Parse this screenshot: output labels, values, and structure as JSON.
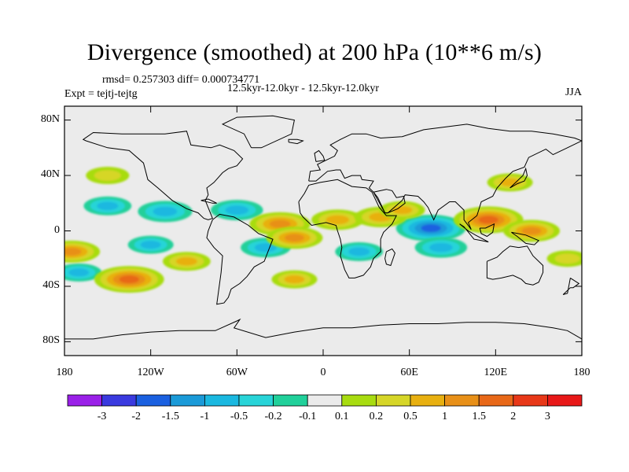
{
  "chart_data": {
    "type": "heatmap",
    "title": "Divergence (smoothed) at 200 hPa (10**6 m/s)",
    "stats": "rmsd= 0.257303 diff= 0.000734771",
    "period": "12.5kyr-12.0kyr - 12.5kyr-12.0kyr",
    "experiment": "Expt = tejtj-tejtg",
    "season": "JJA",
    "xlim": [
      -180,
      180
    ],
    "ylim": [
      -90,
      90
    ],
    "x_ticks": [
      {
        "value": -180,
        "label": "180"
      },
      {
        "value": -120,
        "label": "120W"
      },
      {
        "value": -60,
        "label": "60W"
      },
      {
        "value": 0,
        "label": "0"
      },
      {
        "value": 60,
        "label": "60E"
      },
      {
        "value": 120,
        "label": "120E"
      },
      {
        "value": 180,
        "label": "180"
      }
    ],
    "y_ticks": [
      {
        "value": 80,
        "label": "80N"
      },
      {
        "value": 40,
        "label": "40N"
      },
      {
        "value": 0,
        "label": "0"
      },
      {
        "value": -40,
        "label": "40S"
      },
      {
        "value": -80,
        "label": "80S"
      }
    ],
    "colorbar": {
      "labels": [
        "-3",
        "-2",
        "-1.5",
        "-1",
        "-0.5",
        "-0.2",
        "-0.1",
        "0.1",
        "0.2",
        "0.5",
        "1",
        "1.5",
        "2",
        "3"
      ],
      "colors": [
        "#9a20e8",
        "#3a3adf",
        "#1a60e0",
        "#1a9ad8",
        "#1ab8e0",
        "#28d4d8",
        "#20d09a",
        "#ebebeb",
        "#a8dc10",
        "#d6d628",
        "#e8b010",
        "#e89018",
        "#e86818",
        "#e83818",
        "#e81818"
      ]
    },
    "field": [
      {
        "lon": -150,
        "lat": 18,
        "value": -0.6
      },
      {
        "lon": -110,
        "lat": 14,
        "value": -0.9
      },
      {
        "lon": -60,
        "lat": 15,
        "value": -0.8
      },
      {
        "lon": -40,
        "lat": -12,
        "value": -0.7
      },
      {
        "lon": 25,
        "lat": -15,
        "value": -0.6
      },
      {
        "lon": 75,
        "lat": 2,
        "value": -1.6
      },
      {
        "lon": 82,
        "lat": -12,
        "value": -0.8
      },
      {
        "lon": -170,
        "lat": -30,
        "value": -0.5
      },
      {
        "lon": -120,
        "lat": -10,
        "value": -0.5
      },
      {
        "lon": -30,
        "lat": 5,
        "value": 1.2
      },
      {
        "lon": -20,
        "lat": -5,
        "value": 1.0
      },
      {
        "lon": 10,
        "lat": 8,
        "value": 0.8
      },
      {
        "lon": 40,
        "lat": 10,
        "value": 0.8
      },
      {
        "lon": 115,
        "lat": 8,
        "value": 1.6
      },
      {
        "lon": 145,
        "lat": 0,
        "value": 1.0
      },
      {
        "lon": -135,
        "lat": -35,
        "value": 1.6
      },
      {
        "lon": -175,
        "lat": -15,
        "value": 1.0
      },
      {
        "lon": -95,
        "lat": -22,
        "value": 0.6
      },
      {
        "lon": -20,
        "lat": -35,
        "value": 0.5
      },
      {
        "lon": 55,
        "lat": 15,
        "value": 0.5
      },
      {
        "lon": 130,
        "lat": 35,
        "value": 0.5
      },
      {
        "lon": -150,
        "lat": 40,
        "value": 0.4
      },
      {
        "lon": 170,
        "lat": -20,
        "value": 0.3
      }
    ]
  }
}
